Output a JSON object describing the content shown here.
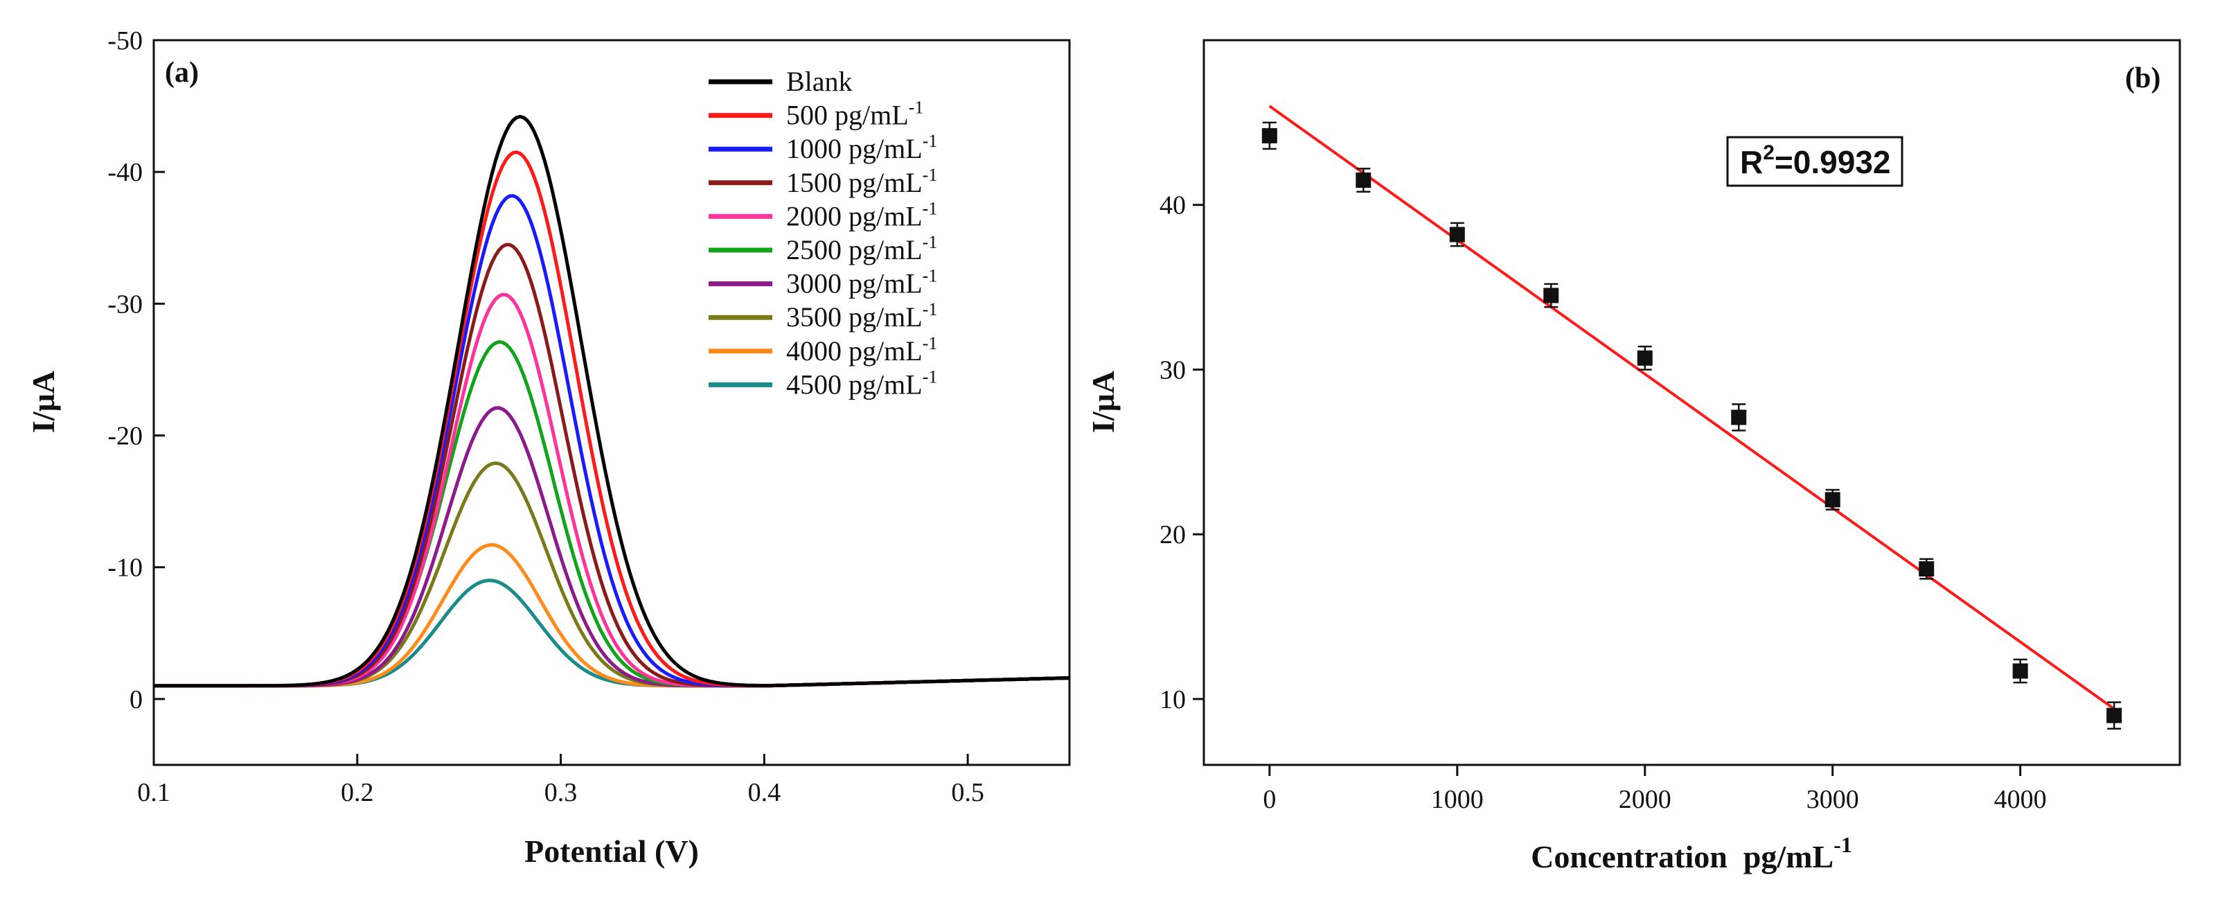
{
  "chart_data": [
    {
      "type": "line",
      "panel_label": "(a)",
      "xlabel": "Potential (V)",
      "ylabel": "I/μA",
      "xlim": [
        0.1,
        0.55
      ],
      "ylim": [
        5,
        -50
      ],
      "y_reversed": true,
      "x_ticks": [
        0.1,
        0.2,
        0.3,
        0.4,
        0.5
      ],
      "x_tick_labels": [
        "0.1",
        "0.2",
        "0.3",
        "0.4",
        "0.5"
      ],
      "y_ticks": [
        0,
        -10,
        -20,
        -30,
        -40,
        -50
      ],
      "y_tick_labels": [
        "0",
        "-10",
        "-20",
        "-30",
        "-40",
        "-50"
      ],
      "legend_position": "top-right",
      "superscript": "-1",
      "series": [
        {
          "name": "Blank",
          "color": "#000000",
          "peak_x": 0.28,
          "peak_y": -44.2,
          "width": 0.03,
          "baseline": -1.0
        },
        {
          "name": "500 pg/mL",
          "color": "#ff1a1a",
          "peak_x": 0.278,
          "peak_y": -41.5,
          "width": 0.029,
          "baseline": -1.0
        },
        {
          "name": "1000 pg/mL",
          "color": "#1a1aff",
          "peak_x": 0.276,
          "peak_y": -38.2,
          "width": 0.028,
          "baseline": -1.0
        },
        {
          "name": "1500 pg/mL",
          "color": "#8b1a1a",
          "peak_x": 0.274,
          "peak_y": -34.5,
          "width": 0.027,
          "baseline": -1.0
        },
        {
          "name": "2000 pg/mL",
          "color": "#ff3399",
          "peak_x": 0.272,
          "peak_y": -30.7,
          "width": 0.026,
          "baseline": -1.0
        },
        {
          "name": "2500 pg/mL",
          "color": "#11a31a",
          "peak_x": 0.27,
          "peak_y": -27.1,
          "width": 0.026,
          "baseline": -1.0
        },
        {
          "name": "3000 pg/mL",
          "color": "#8b1a8b",
          "peak_x": 0.269,
          "peak_y": -22.1,
          "width": 0.025,
          "baseline": -1.0
        },
        {
          "name": "3500 pg/mL",
          "color": "#7a7a1a",
          "peak_x": 0.268,
          "peak_y": -17.9,
          "width": 0.025,
          "baseline": -1.0
        },
        {
          "name": "4000 pg/mL",
          "color": "#ff8c1a",
          "peak_x": 0.266,
          "peak_y": -11.7,
          "width": 0.024,
          "baseline": -1.0
        },
        {
          "name": "4500 pg/mL",
          "color": "#1a8b8b",
          "peak_x": 0.265,
          "peak_y": -9.0,
          "width": 0.024,
          "baseline": -1.0
        }
      ]
    },
    {
      "type": "scatter",
      "panel_label": "(b)",
      "xlabel": "Concentration  pg/mL",
      "xlabel_superscript": "-1",
      "ylabel": "I/μA",
      "xlim": [
        -350,
        4850
      ],
      "ylim": [
        6,
        50
      ],
      "x_ticks": [
        0,
        1000,
        2000,
        3000,
        4000
      ],
      "x_tick_labels": [
        "0",
        "1000",
        "2000",
        "3000",
        "4000"
      ],
      "y_ticks": [
        10,
        20,
        30,
        40
      ],
      "y_tick_labels": [
        "10",
        "20",
        "30",
        "40"
      ],
      "annotation": "R",
      "annotation_superscript": "2",
      "annotation_value": "=0.9932",
      "fit_line": {
        "color": "#ff1a1a",
        "x": [
          0,
          4500
        ],
        "y": [
          46.0,
          9.4
        ]
      },
      "points": {
        "x": [
          0,
          500,
          1000,
          1500,
          2000,
          2500,
          3000,
          3500,
          4000,
          4500
        ],
        "y": [
          44.2,
          41.5,
          38.2,
          34.5,
          30.7,
          27.1,
          22.1,
          17.9,
          11.7,
          9.0
        ],
        "error": [
          0.8,
          0.7,
          0.7,
          0.7,
          0.7,
          0.8,
          0.6,
          0.6,
          0.7,
          0.8
        ]
      }
    }
  ]
}
